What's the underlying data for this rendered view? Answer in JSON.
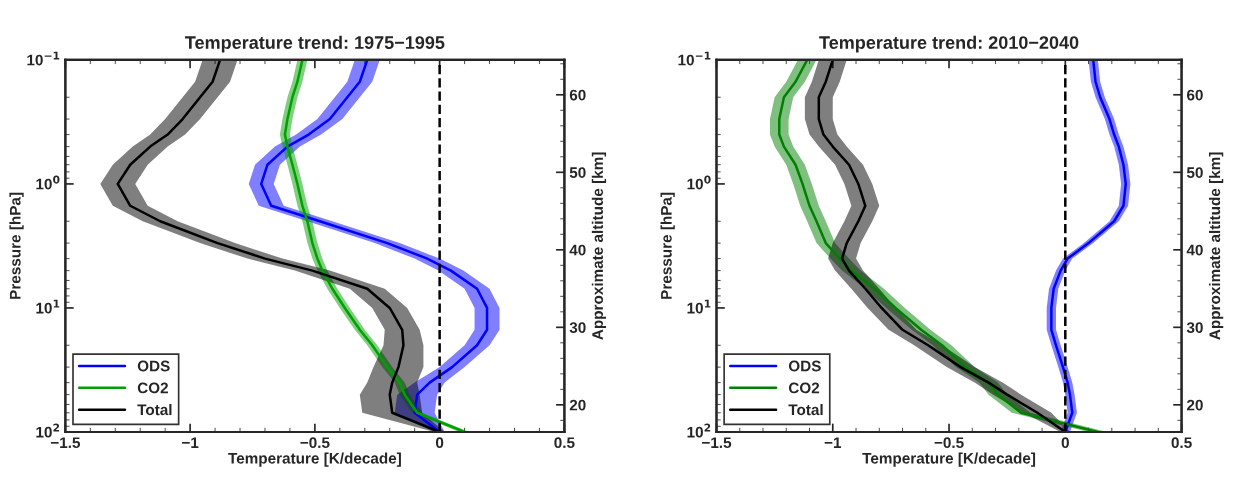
{
  "chart_data": [
    {
      "type": "line",
      "orientation": "horizontal",
      "title": "Temperature trend: 1975−1995",
      "xlabel": "Temperature [K/decade]",
      "ylabel": "Pressure [hPa]",
      "y2label": "Approximate altitude [km]",
      "log": "y",
      "grid": false,
      "legend": "bottom left",
      "xlim": [
        -1.5,
        0.5
      ],
      "xticks": [
        {
          "value": -1.5,
          "label": "−1.5"
        },
        {
          "value": -1,
          "label": "−1"
        },
        {
          "value": -0.5,
          "label": "−0.5"
        },
        0,
        0.5
      ],
      "ylim": [
        100,
        0.1
      ],
      "yticks": [
        {
          "value": 0.1,
          "label": "10$^{−1}$"
        },
        {
          "value": 1,
          "label": "10$^{0}$"
        },
        {
          "value": 10,
          "label": "10$^{1}$"
        },
        {
          "value": 100,
          "label": "10$^{2}$"
        }
      ],
      "y2lim": [
        16.5,
        64.5
      ],
      "y2ticks": [
        20,
        30,
        40,
        50,
        60
      ],
      "x": [
        0.1,
        0.15,
        0.2,
        0.3,
        0.4,
        0.5,
        0.7,
        1,
        1.5,
        2,
        3,
        4,
        5,
        7,
        10,
        15,
        20,
        30,
        40,
        50,
        70,
        100
      ],
      "ref_lines": [
        {
          "axis": "x",
          "value": 0,
          "color": "#000000",
          "line_style": "dashed"
        }
      ],
      "series": [
        {
          "name": "ODS",
          "color": "#0000ff",
          "values": [
            -0.29,
            -0.32,
            -0.37,
            -0.44,
            -0.525,
            -0.61,
            -0.69,
            -0.715,
            -0.675,
            -0.48,
            -0.21,
            -0.05,
            0.045,
            0.15,
            0.19,
            0.19,
            0.15,
            0.05,
            -0.04,
            -0.09,
            -0.1,
            0
          ],
          "lower": [
            -0.34,
            -0.37,
            -0.42,
            -0.49,
            -0.575,
            -0.66,
            -0.74,
            -0.765,
            -0.725,
            -0.53,
            -0.26,
            -0.1,
            -0.005,
            0.1,
            0.14,
            0.14,
            0.1,
            0,
            -0.1,
            -0.17,
            -0.18,
            -0.02
          ],
          "upper": [
            -0.24,
            -0.27,
            -0.32,
            -0.39,
            -0.475,
            -0.56,
            -0.64,
            -0.665,
            -0.625,
            -0.43,
            -0.16,
            0,
            0.095,
            0.2,
            0.24,
            0.24,
            0.2,
            0.1,
            0.02,
            -0.01,
            -0.02,
            0.02
          ]
        },
        {
          "name": "CO2",
          "color": "#00a000",
          "values": [
            -0.55,
            -0.57,
            -0.59,
            -0.61,
            -0.62,
            -0.61,
            -0.59,
            -0.57,
            -0.55,
            -0.53,
            -0.51,
            -0.49,
            -0.47,
            -0.43,
            -0.38,
            -0.32,
            -0.27,
            -0.21,
            -0.16,
            -0.14,
            -0.09,
            0.1
          ],
          "lower": [
            -0.57,
            -0.59,
            -0.61,
            -0.63,
            -0.64,
            -0.63,
            -0.61,
            -0.59,
            -0.57,
            -0.55,
            -0.53,
            -0.51,
            -0.49,
            -0.45,
            -0.4,
            -0.34,
            -0.29,
            -0.23,
            -0.18,
            -0.16,
            -0.11,
            0.08
          ],
          "upper": [
            -0.53,
            -0.55,
            -0.57,
            -0.59,
            -0.6,
            -0.59,
            -0.57,
            -0.55,
            -0.53,
            -0.51,
            -0.49,
            -0.47,
            -0.45,
            -0.41,
            -0.36,
            -0.3,
            -0.25,
            -0.19,
            -0.14,
            -0.12,
            -0.07,
            0.12
          ]
        },
        {
          "name": "Total",
          "color": "#000000",
          "values": [
            -0.88,
            -0.91,
            -0.96,
            -1.03,
            -1.09,
            -1.16,
            -1.24,
            -1.29,
            -1.24,
            -1.12,
            -0.89,
            -0.7,
            -0.51,
            -0.29,
            -0.2,
            -0.15,
            -0.145,
            -0.165,
            -0.19,
            -0.2,
            -0.19,
            0
          ],
          "lower": [
            -0.95,
            -0.98,
            -1.03,
            -1.1,
            -1.16,
            -1.23,
            -1.31,
            -1.36,
            -1.31,
            -1.19,
            -0.96,
            -0.77,
            -0.58,
            -0.36,
            -0.27,
            -0.22,
            -0.225,
            -0.265,
            -0.29,
            -0.32,
            -0.31,
            -0.02
          ],
          "upper": [
            -0.81,
            -0.84,
            -0.89,
            -0.96,
            -1.02,
            -1.09,
            -1.17,
            -1.22,
            -1.17,
            -1.05,
            -0.82,
            -0.63,
            -0.44,
            -0.22,
            -0.13,
            -0.08,
            -0.065,
            -0.065,
            -0.09,
            -0.08,
            -0.07,
            0.02
          ]
        }
      ]
    },
    {
      "type": "line",
      "orientation": "horizontal",
      "title": "Temperature trend: 2010−2040",
      "xlabel": "Temperature [K/decade]",
      "ylabel": "Pressure [hPa]",
      "y2label": "Approximate altitude [km]",
      "log": "y",
      "grid": false,
      "legend": "bottom left",
      "xlim": [
        -1.5,
        0.5
      ],
      "xticks": [
        {
          "value": -1.5,
          "label": "−1.5"
        },
        {
          "value": -1,
          "label": "−1"
        },
        {
          "value": -0.5,
          "label": "−0.5"
        },
        0,
        0.5
      ],
      "ylim": [
        100,
        0.1
      ],
      "yticks": [
        {
          "value": 0.1,
          "label": "10$^{−1}$"
        },
        {
          "value": 1,
          "label": "10$^{0}$"
        },
        {
          "value": 10,
          "label": "10$^{1}$"
        },
        {
          "value": 100,
          "label": "10$^{2}$"
        }
      ],
      "y2lim": [
        16.5,
        64.5
      ],
      "y2ticks": [
        20,
        30,
        40,
        50,
        60
      ],
      "x": [
        0.1,
        0.15,
        0.2,
        0.3,
        0.4,
        0.5,
        0.7,
        1,
        1.5,
        2,
        3,
        4,
        5,
        7,
        10,
        15,
        20,
        30,
        40,
        50,
        70,
        100
      ],
      "ref_lines": [
        {
          "axis": "x",
          "value": 0,
          "color": "#000000",
          "line_style": "dashed"
        }
      ],
      "series": [
        {
          "name": "ODS",
          "color": "#0000ff",
          "values": [
            0.12,
            0.13,
            0.15,
            0.19,
            0.21,
            0.23,
            0.25,
            0.26,
            0.25,
            0.21,
            0.1,
            0.01,
            -0.02,
            -0.05,
            -0.06,
            -0.06,
            -0.04,
            -0.01,
            0.01,
            0.02,
            0.03,
            0
          ],
          "lower": [
            0.1,
            0.11,
            0.13,
            0.17,
            0.19,
            0.21,
            0.23,
            0.24,
            0.23,
            0.19,
            0.08,
            -0.01,
            -0.04,
            -0.07,
            -0.08,
            -0.08,
            -0.06,
            -0.03,
            -0.01,
            0,
            0.01,
            -0.02
          ],
          "upper": [
            0.14,
            0.15,
            0.17,
            0.21,
            0.23,
            0.25,
            0.27,
            0.28,
            0.27,
            0.23,
            0.12,
            0.03,
            0,
            -0.03,
            -0.04,
            -0.04,
            -0.02,
            0.01,
            0.03,
            0.04,
            0.05,
            0.02
          ]
        },
        {
          "name": "CO2",
          "color": "#008000",
          "values": [
            -1.11,
            -1.16,
            -1.21,
            -1.23,
            -1.23,
            -1.21,
            -1.16,
            -1.13,
            -1.1,
            -1.07,
            -1.03,
            -0.97,
            -0.92,
            -0.82,
            -0.73,
            -0.62,
            -0.53,
            -0.43,
            -0.33,
            -0.29,
            -0.19,
            0.14
          ],
          "lower": [
            -1.15,
            -1.2,
            -1.25,
            -1.27,
            -1.27,
            -1.25,
            -1.2,
            -1.17,
            -1.14,
            -1.11,
            -1.07,
            -1.01,
            -0.96,
            -0.86,
            -0.77,
            -0.66,
            -0.57,
            -0.47,
            -0.37,
            -0.33,
            -0.23,
            0.1
          ],
          "upper": [
            -1.07,
            -1.12,
            -1.17,
            -1.19,
            -1.19,
            -1.17,
            -1.12,
            -1.09,
            -1.06,
            -1.03,
            -0.99,
            -0.93,
            -0.88,
            -0.78,
            -0.69,
            -0.58,
            -0.49,
            -0.39,
            -0.29,
            -0.25,
            -0.15,
            0.18
          ]
        },
        {
          "name": "Total",
          "color": "#000000",
          "values": [
            -1.0,
            -1.03,
            -1.06,
            -1.06,
            -1.04,
            -1.0,
            -0.93,
            -0.89,
            -0.86,
            -0.89,
            -0.94,
            -0.96,
            -0.93,
            -0.86,
            -0.79,
            -0.7,
            -0.59,
            -0.45,
            -0.33,
            -0.25,
            -0.12,
            0
          ],
          "lower": [
            -1.06,
            -1.09,
            -1.12,
            -1.12,
            -1.1,
            -1.06,
            -0.99,
            -0.95,
            -0.92,
            -0.95,
            -1.0,
            -1.02,
            -0.99,
            -0.92,
            -0.85,
            -0.76,
            -0.65,
            -0.51,
            -0.39,
            -0.31,
            -0.18,
            -0.02
          ],
          "upper": [
            -0.94,
            -0.97,
            -1.0,
            -1.0,
            -0.98,
            -0.94,
            -0.87,
            -0.83,
            -0.8,
            -0.83,
            -0.88,
            -0.9,
            -0.87,
            -0.8,
            -0.73,
            -0.64,
            -0.53,
            -0.39,
            -0.27,
            -0.19,
            -0.06,
            0.02
          ]
        }
      ]
    }
  ]
}
